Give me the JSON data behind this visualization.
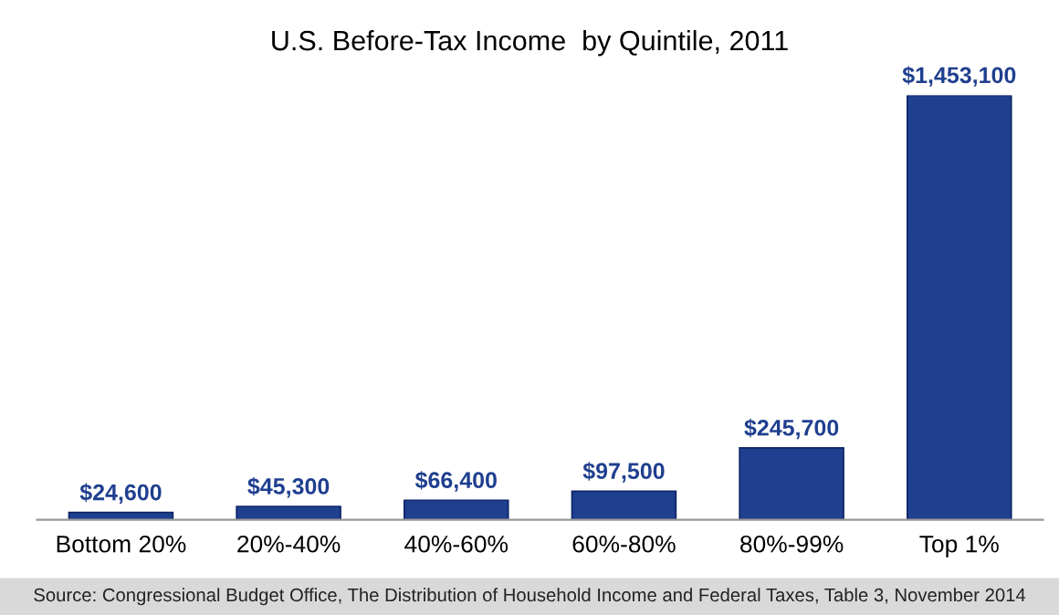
{
  "chart_data": {
    "type": "bar",
    "title": "U.S. Before-Tax Income  by Quintile, 2011",
    "categories": [
      "Bottom 20%",
      "20%-40%",
      "40%-60%",
      "60%-80%",
      "80%-99%",
      "Top 1%"
    ],
    "values": [
      24600,
      45300,
      66400,
      97500,
      245700,
      1453100
    ],
    "value_labels": [
      "$24,600",
      "$45,300",
      "$66,400",
      "$97,500",
      "$245,700",
      "$1,453,100"
    ],
    "color": "#1f3f8f",
    "grid": false,
    "legend": false,
    "annotations": [
      "Source: Congressional Budget Office, The Distribution of Household Income and Federal Taxes, Table 3, November 2014"
    ]
  }
}
